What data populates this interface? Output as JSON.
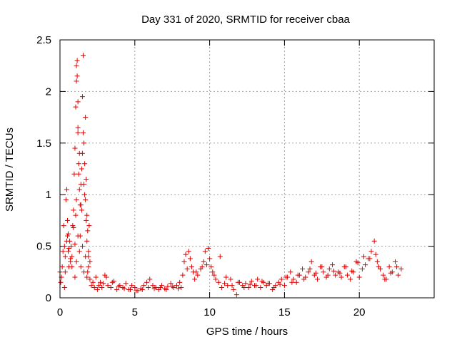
{
  "chart_data": {
    "type": "scatter",
    "title": "Day 331 of 2020, SRMTID for receiver cbaa",
    "xlabel": "GPS time / hours",
    "ylabel": "SRMTID / TECUs",
    "xlim": [
      0,
      25
    ],
    "ylim": [
      0,
      2.5
    ],
    "x_ticks": [
      "0",
      "5",
      "10",
      "15",
      "20"
    ],
    "y_ticks": [
      "0",
      "0.5",
      "1",
      "1.5",
      "2",
      "2.5"
    ],
    "grid": true,
    "marker": "plus",
    "color": "#e00000",
    "series": [
      {
        "name": "SRMTID",
        "x": [
          0.0,
          0.05,
          0.1,
          0.15,
          0.2,
          0.25,
          0.3,
          0.35,
          0.4,
          0.45,
          0.5,
          0.55,
          0.6,
          0.65,
          0.7,
          0.75,
          0.8,
          0.85,
          0.9,
          0.95,
          1.0,
          1.05,
          1.1,
          1.15,
          1.2,
          1.25,
          1.3,
          1.35,
          1.4,
          1.45,
          1.5,
          1.55,
          1.6,
          1.65,
          1.7,
          1.75,
          1.8,
          1.85,
          1.9,
          1.95,
          2.0,
          0.3,
          0.35,
          0.45,
          0.5,
          0.55,
          0.6,
          0.7,
          0.8,
          0.9,
          1.0,
          1.05,
          1.1,
          1.1,
          1.15,
          1.2,
          1.2,
          1.25,
          1.3,
          1.35,
          1.4,
          1.45,
          1.5,
          1.55,
          1.6,
          1.65,
          1.7,
          1.75,
          1.8,
          1.85,
          1.9,
          1.0,
          1.1,
          1.2,
          1.3,
          1.4,
          1.5,
          1.6,
          1.7,
          1.8,
          1.9,
          2.0,
          2.1,
          2.2,
          2.3,
          2.4,
          2.5,
          2.6,
          2.7,
          2.8,
          2.9,
          3.0,
          3.2,
          3.4,
          3.6,
          3.8,
          4.0,
          4.2,
          4.4,
          4.6,
          4.8,
          5.0,
          5.2,
          5.4,
          5.6,
          5.8,
          6.0,
          6.2,
          6.4,
          6.6,
          6.8,
          7.0,
          7.2,
          7.4,
          7.6,
          7.8,
          8.0,
          8.2,
          8.3,
          8.4,
          8.5,
          8.6,
          8.7,
          8.8,
          8.9,
          9.0,
          9.2,
          9.4,
          9.6,
          9.7,
          9.8,
          9.9,
          10.0,
          10.1,
          10.2,
          10.4,
          10.6,
          10.8,
          11.0,
          11.2,
          11.4,
          11.6,
          11.8,
          12.0,
          12.2,
          12.4,
          12.6,
          12.8,
          13.0,
          13.2,
          13.4,
          13.6,
          13.8,
          14.0,
          14.2,
          14.4,
          14.6,
          14.8,
          15.0,
          15.2,
          15.4,
          15.6,
          15.8,
          16.0,
          16.2,
          16.4,
          16.6,
          16.8,
          17.0,
          17.2,
          17.4,
          17.6,
          17.8,
          18.0,
          18.2,
          18.4,
          18.6,
          18.8,
          19.0,
          19.2,
          19.4,
          19.6,
          19.8,
          20.0,
          20.2,
          20.4,
          20.6,
          20.8,
          21.0,
          21.1,
          21.2,
          21.4,
          21.6,
          21.8,
          22.0,
          22.2,
          22.4,
          22.6,
          22.8,
          3.1,
          3.5,
          3.9,
          4.3,
          4.7,
          5.1,
          5.5,
          5.9,
          6.3,
          6.7,
          7.1,
          7.5,
          7.9,
          8.1,
          9.1,
          9.5,
          10.3,
          10.7,
          11.1,
          11.5,
          11.9,
          12.3,
          12.7,
          13.1,
          13.5,
          13.9,
          14.3,
          14.7,
          15.1,
          15.5,
          15.9,
          16.3,
          16.7,
          17.1,
          17.5,
          17.9,
          18.3,
          18.7,
          19.1,
          19.5,
          19.9,
          20.3,
          20.7,
          21.3,
          21.7,
          22.1,
          22.5
        ],
        "y": [
          0.25,
          0.15,
          0.2,
          0.3,
          0.45,
          0.7,
          0.5,
          0.4,
          0.95,
          1.05,
          0.6,
          0.45,
          0.3,
          0.55,
          0.35,
          0.5,
          0.4,
          0.7,
          0.85,
          1.2,
          1.45,
          1.85,
          2.1,
          2.3,
          1.6,
          1.3,
          1.4,
          0.9,
          1.1,
          1.25,
          1.95,
          2.35,
          1.5,
          1.0,
          1.75,
          1.15,
          0.8,
          0.65,
          0.45,
          0.7,
          0.35,
          0.1,
          0.25,
          0.55,
          0.75,
          0.62,
          0.48,
          0.38,
          0.3,
          0.68,
          0.52,
          0.8,
          0.95,
          2.25,
          2.15,
          1.9,
          1.65,
          1.2,
          1.05,
          0.6,
          0.9,
          0.85,
          1.4,
          1.6,
          1.1,
          1.3,
          0.95,
          0.75,
          0.55,
          0.25,
          0.4,
          0.2,
          0.35,
          0.6,
          0.45,
          0.3,
          0.5,
          0.25,
          0.4,
          0.2,
          0.3,
          0.18,
          0.12,
          0.15,
          0.1,
          0.2,
          0.08,
          0.12,
          0.15,
          0.1,
          0.14,
          0.22,
          0.12,
          0.1,
          0.16,
          0.08,
          0.12,
          0.1,
          0.14,
          0.08,
          0.12,
          0.1,
          0.07,
          0.09,
          0.12,
          0.15,
          0.18,
          0.12,
          0.1,
          0.08,
          0.12,
          0.09,
          0.11,
          0.14,
          0.1,
          0.12,
          0.15,
          0.22,
          0.35,
          0.42,
          0.28,
          0.45,
          0.38,
          0.3,
          0.25,
          0.18,
          0.22,
          0.28,
          0.35,
          0.45,
          0.32,
          0.48,
          0.38,
          0.3,
          0.25,
          0.18,
          0.15,
          0.1,
          0.14,
          0.12,
          0.18,
          0.08,
          0.03,
          0.15,
          0.12,
          0.14,
          0.1,
          0.16,
          0.12,
          0.18,
          0.1,
          0.15,
          0.12,
          0.14,
          0.08,
          0.12,
          0.15,
          0.18,
          0.12,
          0.2,
          0.25,
          0.18,
          0.15,
          0.22,
          0.28,
          0.2,
          0.25,
          0.35,
          0.22,
          0.18,
          0.3,
          0.25,
          0.2,
          0.28,
          0.32,
          0.22,
          0.25,
          0.2,
          0.3,
          0.22,
          0.18,
          0.25,
          0.35,
          0.2,
          0.28,
          0.32,
          0.38,
          0.45,
          0.55,
          0.42,
          0.35,
          0.28,
          0.22,
          0.18,
          0.3,
          0.25,
          0.35,
          0.22,
          0.28,
          0.2,
          0.15,
          0.11,
          0.09,
          0.08,
          0.07,
          0.08,
          0.1,
          0.09,
          0.1,
          0.08,
          0.11,
          0.09,
          0.1,
          0.25,
          0.3,
          0.22,
          0.4,
          0.2,
          0.12,
          0.15,
          0.1,
          0.13,
          0.12,
          0.16,
          0.14,
          0.1,
          0.13,
          0.2,
          0.15,
          0.22,
          0.18,
          0.28,
          0.24,
          0.3,
          0.22,
          0.26,
          0.24,
          0.3,
          0.26,
          0.34,
          0.4,
          0.38,
          0.3,
          0.18,
          0.24,
          0.3
        ]
      }
    ]
  }
}
